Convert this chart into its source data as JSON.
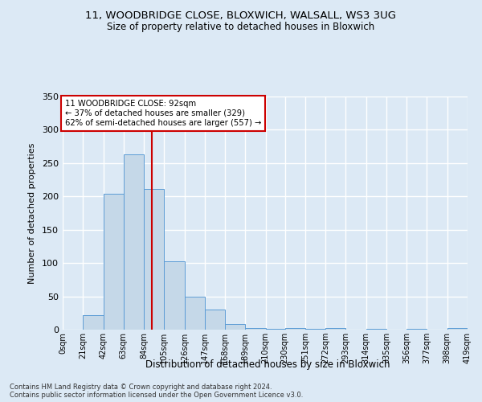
{
  "title1": "11, WOODBRIDGE CLOSE, BLOXWICH, WALSALL, WS3 3UG",
  "title2": "Size of property relative to detached houses in Bloxwich",
  "xlabel": "Distribution of detached houses by size in Bloxwich",
  "ylabel": "Number of detached properties",
  "footnote1": "Contains HM Land Registry data © Crown copyright and database right 2024.",
  "footnote2": "Contains public sector information licensed under the Open Government Licence v3.0.",
  "annotation_line1": "11 WOODBRIDGE CLOSE: 92sqm",
  "annotation_line2": "← 37% of detached houses are smaller (329)",
  "annotation_line3": "62% of semi-detached houses are larger (557) →",
  "bin_edges": [
    0,
    21,
    42,
    63,
    84,
    105,
    126,
    147,
    168,
    189,
    210,
    230,
    251,
    272,
    293,
    314,
    335,
    356,
    377,
    398,
    419
  ],
  "bin_counts": [
    0,
    22,
    204,
    263,
    211,
    103,
    50,
    30,
    9,
    2,
    1,
    2,
    1,
    2,
    0,
    1,
    0,
    1,
    0,
    2
  ],
  "bar_color": "#c5d8e8",
  "bar_edge_color": "#5b9bd5",
  "vline_color": "#cc0000",
  "vline_x": 92,
  "annotation_box_color": "#ffffff",
  "annotation_box_edge": "#cc0000",
  "bg_color": "#dce9f5",
  "plot_bg_color": "#dce9f5",
  "grid_color": "#ffffff",
  "ylim": [
    0,
    350
  ],
  "yticks": [
    0,
    50,
    100,
    150,
    200,
    250,
    300,
    350
  ]
}
